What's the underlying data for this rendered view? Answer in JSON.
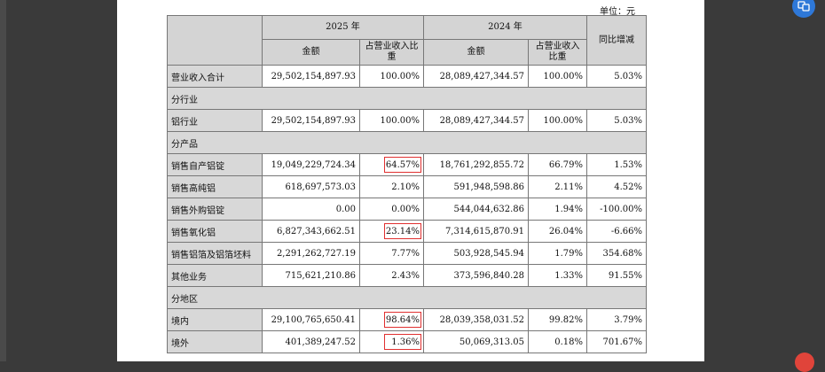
{
  "unit_label": "单位：元",
  "header": {
    "year_2025": "2025 年",
    "year_2024": "2024 年",
    "amount": "金额",
    "ratio": "占营业收入比重",
    "yoy": "同比增减"
  },
  "rows": [
    {
      "label": "营业收入合计",
      "a2025": "29,502,154,897.93",
      "r2025": "100.00%",
      "a2024": "28,089,427,344.57",
      "r2024": "100.00%",
      "yoy": "5.03%"
    },
    {
      "section": "分行业"
    },
    {
      "label": "铝行业",
      "a2025": "29,502,154,897.93",
      "r2025": "100.00%",
      "a2024": "28,089,427,344.57",
      "r2024": "100.00%",
      "yoy": "5.03%"
    },
    {
      "section": "分产品"
    },
    {
      "label": "销售自产铝锭",
      "a2025": "19,049,229,724.34",
      "r2025": "64.57%",
      "a2024": "18,761,292,855.72",
      "r2024": "66.79%",
      "yoy": "1.53%",
      "highlight": true
    },
    {
      "label": "销售高纯铝",
      "a2025": "618,697,573.03",
      "r2025": "2.10%",
      "a2024": "591,948,598.86",
      "r2024": "2.11%",
      "yoy": "4.52%"
    },
    {
      "label": "销售外购铝锭",
      "a2025": "0.00",
      "r2025": "0.00%",
      "a2024": "544,044,632.86",
      "r2024": "1.94%",
      "yoy": "-100.00%"
    },
    {
      "label": "销售氧化铝",
      "a2025": "6,827,343,662.51",
      "r2025": "23.14%",
      "a2024": "7,314,615,870.91",
      "r2024": "26.04%",
      "yoy": "-6.66%",
      "highlight": true
    },
    {
      "label": "销售铝箔及铝箔坯料",
      "a2025": "2,291,262,727.19",
      "r2025": "7.77%",
      "a2024": "503,928,545.94",
      "r2024": "1.79%",
      "yoy": "354.68%"
    },
    {
      "label": "其他业务",
      "a2025": "715,621,210.86",
      "r2025": "2.43%",
      "a2024": "373,596,840.28",
      "r2024": "1.33%",
      "yoy": "91.55%"
    },
    {
      "section": "分地区"
    },
    {
      "label": "境内",
      "a2025": "29,100,765,650.41",
      "r2025": "98.64%",
      "a2024": "28,039,358,031.52",
      "r2024": "99.82%",
      "yoy": "3.79%",
      "highlight": true
    },
    {
      "label": "境外",
      "a2025": "401,389,247.52",
      "r2025": "1.36%",
      "a2024": "50,069,313.05",
      "r2024": "0.18%",
      "yoy": "701.67%",
      "highlight": true
    }
  ]
}
